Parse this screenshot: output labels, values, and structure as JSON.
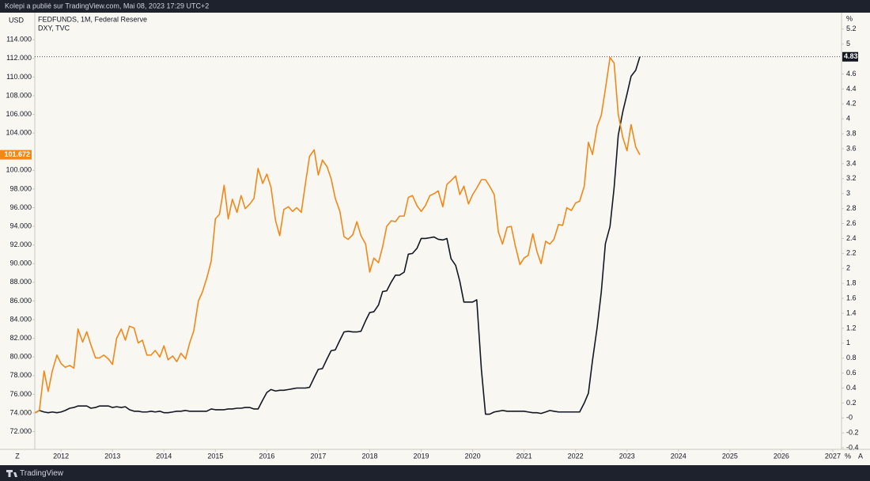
{
  "header": {
    "title": "Kolepi a publié sur TradingView.com, Mai 08, 2023 17:29 UTC+2"
  },
  "toolbar": {
    "left": "Z",
    "right": [
      "%",
      "A"
    ]
  },
  "footer": {
    "brand": "TradingView"
  },
  "chart_data": {
    "type": "line",
    "y_unit": "USD",
    "y2_unit": "%",
    "legend": "top-left",
    "x": [
      2011.5,
      2011.58,
      2011.67,
      2011.75,
      2011.83,
      2011.92,
      2012,
      2012.08,
      2012.17,
      2012.25,
      2012.33,
      2012.42,
      2012.5,
      2012.58,
      2012.67,
      2012.75,
      2012.83,
      2012.92,
      2013,
      2013.08,
      2013.17,
      2013.25,
      2013.33,
      2013.42,
      2013.5,
      2013.58,
      2013.67,
      2013.75,
      2013.83,
      2013.92,
      2014,
      2014.08,
      2014.17,
      2014.25,
      2014.33,
      2014.42,
      2014.5,
      2014.58,
      2014.67,
      2014.75,
      2014.83,
      2014.92,
      2015,
      2015.08,
      2015.17,
      2015.25,
      2015.33,
      2015.42,
      2015.5,
      2015.58,
      2015.67,
      2015.75,
      2015.83,
      2015.92,
      2016,
      2016.08,
      2016.17,
      2016.25,
      2016.33,
      2016.42,
      2016.5,
      2016.58,
      2016.67,
      2016.75,
      2016.83,
      2016.92,
      2017,
      2017.08,
      2017.17,
      2017.25,
      2017.33,
      2017.42,
      2017.5,
      2017.58,
      2017.67,
      2017.75,
      2017.83,
      2017.92,
      2018,
      2018.08,
      2018.17,
      2018.25,
      2018.33,
      2018.42,
      2018.5,
      2018.58,
      2018.67,
      2018.75,
      2018.83,
      2018.92,
      2019,
      2019.08,
      2019.17,
      2019.25,
      2019.33,
      2019.42,
      2019.5,
      2019.58,
      2019.67,
      2019.75,
      2019.83,
      2019.92,
      2020,
      2020.08,
      2020.17,
      2020.25,
      2020.33,
      2020.42,
      2020.5,
      2020.58,
      2020.67,
      2020.75,
      2020.83,
      2020.92,
      2021,
      2021.08,
      2021.17,
      2021.25,
      2021.33,
      2021.42,
      2021.5,
      2021.58,
      2021.67,
      2021.75,
      2021.83,
      2021.92,
      2022,
      2022.08,
      2022.17,
      2022.25,
      2022.33,
      2022.42,
      2022.5,
      2022.58,
      2022.67,
      2022.75,
      2022.83,
      2022.92,
      2023,
      2023.08,
      2023.17,
      2023.25
    ],
    "xlim": [
      2011.49,
      2027.17
    ],
    "xticks": [
      2012,
      2013,
      2014,
      2015,
      2016,
      2017,
      2018,
      2019,
      2020,
      2021,
      2022,
      2023,
      2024,
      2025,
      2026,
      2027
    ],
    "ylim": [
      70.1,
      116.9
    ],
    "yticks": [
      {
        "value": 72,
        "label": "72.000"
      },
      {
        "value": 74,
        "label": "74.000"
      },
      {
        "value": 76,
        "label": "76.000"
      },
      {
        "value": 78,
        "label": "78.000"
      },
      {
        "value": 80,
        "label": "80.000"
      },
      {
        "value": 82,
        "label": "82.000"
      },
      {
        "value": 84,
        "label": "84.000"
      },
      {
        "value": 86,
        "label": "86.000"
      },
      {
        "value": 88,
        "label": "88.000"
      },
      {
        "value": 90,
        "label": "90.000"
      },
      {
        "value": 92,
        "label": "92.000"
      },
      {
        "value": 94,
        "label": "94.000"
      },
      {
        "value": 96,
        "label": "96.000"
      },
      {
        "value": 98,
        "label": "98.000"
      },
      {
        "value": 100,
        "label": "100.000"
      },
      {
        "value": 104,
        "label": "104.000"
      },
      {
        "value": 106,
        "label": "106.000"
      },
      {
        "value": 108,
        "label": "108.000"
      },
      {
        "value": 110,
        "label": "110.000"
      },
      {
        "value": 112,
        "label": "112.000"
      },
      {
        "value": 114,
        "label": "114.000"
      }
    ],
    "y2lim": [
      -0.42,
      5.42
    ],
    "y2ticks": [
      -0.4,
      -0.2,
      {
        "value": 0,
        "label": "-0"
      },
      0.2,
      0.4,
      0.6,
      0.8,
      1,
      1.2,
      1.4,
      1.6,
      1.8,
      2,
      2.2,
      2.4,
      2.6,
      2.8,
      3,
      3.2,
      3.4,
      3.6,
      3.8,
      4,
      4.2,
      4.4,
      4.6,
      5,
      5.2
    ],
    "series": [
      {
        "name": "FEDFUNDS, 1M, Federal Reserve",
        "color": "#131722",
        "axis": "y2",
        "last_value": 4.83,
        "values": [
          0.07,
          0.1,
          0.08,
          0.07,
          0.08,
          0.07,
          0.08,
          0.1,
          0.13,
          0.14,
          0.16,
          0.16,
          0.16,
          0.13,
          0.14,
          0.16,
          0.16,
          0.16,
          0.14,
          0.15,
          0.14,
          0.15,
          0.11,
          0.09,
          0.09,
          0.08,
          0.08,
          0.09,
          0.08,
          0.09,
          0.07,
          0.07,
          0.08,
          0.09,
          0.09,
          0.1,
          0.09,
          0.09,
          0.09,
          0.09,
          0.09,
          0.12,
          0.11,
          0.11,
          0.11,
          0.12,
          0.12,
          0.13,
          0.13,
          0.14,
          0.14,
          0.12,
          0.12,
          0.24,
          0.34,
          0.38,
          0.36,
          0.37,
          0.37,
          0.38,
          0.39,
          0.4,
          0.4,
          0.4,
          0.41,
          0.54,
          0.65,
          0.66,
          0.79,
          0.9,
          0.91,
          1.04,
          1.15,
          1.16,
          1.15,
          1.15,
          1.16,
          1.3,
          1.41,
          1.42,
          1.51,
          1.69,
          1.7,
          1.82,
          1.91,
          1.91,
          1.95,
          2.19,
          2.2,
          2.27,
          2.4,
          2.4,
          2.41,
          2.42,
          2.39,
          2.38,
          2.4,
          2.13,
          2.04,
          1.83,
          1.55,
          1.55,
          1.55,
          1.58,
          0.65,
          0.05,
          0.05,
          0.08,
          0.09,
          0.1,
          0.09,
          0.09,
          0.09,
          0.09,
          0.09,
          0.08,
          0.07,
          0.07,
          0.06,
          0.08,
          0.1,
          0.09,
          0.08,
          0.08,
          0.08,
          0.08,
          0.08,
          0.08,
          0.2,
          0.33,
          0.77,
          1.21,
          1.68,
          2.33,
          2.56,
          3.08,
          3.78,
          4.1,
          4.33,
          4.57,
          4.65,
          4.83
        ]
      },
      {
        "name": "DXY, TVC",
        "color": "#f0891a",
        "axis": "y",
        "last_value": 101.672,
        "values": [
          74.0,
          74.3,
          78.5,
          76.3,
          78.5,
          80.2,
          79.3,
          78.9,
          79.1,
          78.8,
          83.0,
          81.6,
          82.7,
          81.3,
          79.9,
          79.9,
          80.2,
          79.8,
          79.2,
          82.0,
          83.0,
          81.8,
          83.3,
          83.1,
          81.5,
          81.8,
          80.2,
          80.2,
          80.7,
          80.0,
          81.2,
          79.7,
          80.1,
          79.5,
          80.4,
          79.8,
          81.5,
          82.8,
          86.0,
          87.0,
          88.4,
          90.3,
          94.8,
          95.3,
          98.4,
          94.8,
          96.9,
          95.5,
          97.3,
          95.9,
          96.4,
          97.0,
          100.2,
          98.6,
          99.6,
          98.2,
          94.6,
          93.0,
          95.8,
          96.1,
          95.6,
          96.0,
          95.5,
          98.6,
          101.5,
          102.2,
          99.5,
          101.1,
          100.4,
          99.1,
          97.0,
          95.6,
          92.9,
          92.6,
          93.1,
          94.5,
          93.0,
          92.1,
          89.1,
          90.6,
          90.1,
          91.8,
          94.0,
          94.6,
          94.5,
          95.1,
          95.1,
          97.1,
          97.3,
          96.2,
          95.6,
          96.2,
          97.3,
          97.5,
          97.8,
          96.1,
          98.5,
          98.9,
          99.4,
          97.4,
          98.3,
          96.4,
          97.4,
          98.1,
          99.0,
          99.0,
          98.3,
          97.4,
          93.4,
          92.1,
          93.9,
          94.0,
          91.9,
          89.9,
          90.6,
          90.9,
          93.2,
          91.3,
          90.0,
          92.4,
          92.1,
          92.6,
          94.2,
          94.1,
          96.0,
          95.7,
          96.5,
          96.7,
          98.3,
          103.0,
          101.7,
          104.7,
          105.9,
          108.7,
          112.1,
          111.5,
          106.0,
          103.5,
          102.1,
          104.9,
          102.5,
          101.672
        ]
      }
    ]
  }
}
